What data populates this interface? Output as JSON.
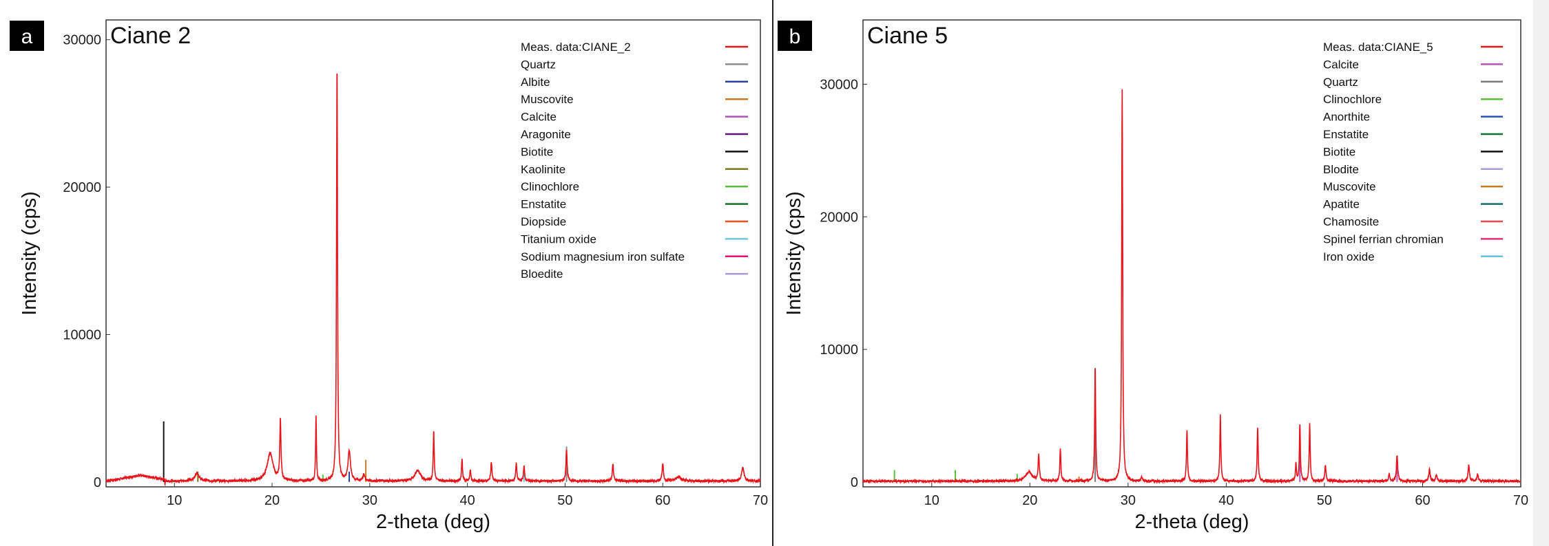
{
  "chart_data": [
    {
      "type": "line",
      "panel_label": "a",
      "title": "Ciane 2",
      "xlabel": "2-theta (deg)",
      "ylabel": "Intensity (cps)",
      "xlim": [
        3,
        70
      ],
      "ylim": [
        -335,
        31340
      ],
      "xticks": [
        10,
        20,
        30,
        40,
        50,
        60,
        70
      ],
      "yticks": [
        0,
        10000,
        20000,
        30000
      ],
      "legend_position": "top-right",
      "legend": [
        {
          "name": "Meas. data:CIANE_2",
          "color": "#e8131b"
        },
        {
          "name": "Quartz",
          "color": "#8c8c8c"
        },
        {
          "name": "Albite",
          "color": "#2a3f9e"
        },
        {
          "name": "Muscovite",
          "color": "#c87a1e"
        },
        {
          "name": "Calcite",
          "color": "#b255b8"
        },
        {
          "name": "Aragonite",
          "color": "#5b1a74"
        },
        {
          "name": "Biotite",
          "color": "#111111"
        },
        {
          "name": "Kaolinite",
          "color": "#7a7a18"
        },
        {
          "name": "Clinochlore",
          "color": "#5bbf3c"
        },
        {
          "name": "Enstatite",
          "color": "#11702a"
        },
        {
          "name": "Diopside",
          "color": "#f0501e"
        },
        {
          "name": "Titanium oxide",
          "color": "#6cc8e0"
        },
        {
          "name": "Sodium magnesium iron sulfate",
          "color": "#e6106e"
        },
        {
          "name": "Bloedite",
          "color": "#b09ad8"
        }
      ],
      "measured_peaks": [
        {
          "x": 12.3,
          "y": 550,
          "w": 0.25
        },
        {
          "x": 19.8,
          "y": 1900,
          "w": 0.35
        },
        {
          "x": 20.85,
          "y": 4100,
          "w": 0.07
        },
        {
          "x": 24.5,
          "y": 4400,
          "w": 0.05
        },
        {
          "x": 26.65,
          "y": 28400,
          "w": 0.06
        },
        {
          "x": 27.9,
          "y": 2000,
          "w": 0.15
        },
        {
          "x": 29.4,
          "y": 500,
          "w": 0.1
        },
        {
          "x": 34.9,
          "y": 700,
          "w": 0.35
        },
        {
          "x": 36.55,
          "y": 3400,
          "w": 0.06
        },
        {
          "x": 39.45,
          "y": 1500,
          "w": 0.06
        },
        {
          "x": 40.3,
          "y": 800,
          "w": 0.06
        },
        {
          "x": 42.45,
          "y": 1300,
          "w": 0.07
        },
        {
          "x": 45.0,
          "y": 1200,
          "w": 0.07
        },
        {
          "x": 45.8,
          "y": 1000,
          "w": 0.07
        },
        {
          "x": 50.15,
          "y": 2200,
          "w": 0.07
        },
        {
          "x": 54.9,
          "y": 1100,
          "w": 0.08
        },
        {
          "x": 60.0,
          "y": 1200,
          "w": 0.08
        },
        {
          "x": 61.6,
          "y": 300,
          "w": 0.3
        },
        {
          "x": 68.2,
          "y": 900,
          "w": 0.15
        }
      ],
      "reference_lines": [
        {
          "phase": "Biotite",
          "x": 8.9,
          "y": 4100
        },
        {
          "phase": "Muscovite",
          "x": 29.6,
          "y": 1500
        },
        {
          "phase": "Quartz",
          "x": 50.15,
          "y": 2400
        },
        {
          "phase": "Kaolinite",
          "x": 12.4,
          "y": 700
        },
        {
          "phase": "Clinochlore",
          "x": 25.2,
          "y": 500
        },
        {
          "phase": "Albite",
          "x": 27.9,
          "y": 700
        },
        {
          "phase": "Titanium oxide",
          "x": 45.8,
          "y": 1100
        }
      ]
    },
    {
      "type": "line",
      "panel_label": "b",
      "title": "Ciane 5",
      "xlabel": "2-theta (deg)",
      "ylabel": "Intensity (cps)",
      "xlim": [
        3,
        70
      ],
      "ylim": [
        -370,
        34850
      ],
      "xticks": [
        10,
        20,
        30,
        40,
        50,
        60,
        70
      ],
      "yticks": [
        0,
        10000,
        20000,
        30000
      ],
      "legend_position": "top-right",
      "legend": [
        {
          "name": "Meas. data:CIANE_5",
          "color": "#e8131b"
        },
        {
          "name": "Calcite",
          "color": "#b255b8"
        },
        {
          "name": "Quartz",
          "color": "#7a7a7a"
        },
        {
          "name": "Clinochlore",
          "color": "#5bbf3c"
        },
        {
          "name": "Anorthite",
          "color": "#2a4fb8"
        },
        {
          "name": "Enstatite",
          "color": "#11702a"
        },
        {
          "name": "Biotite",
          "color": "#111111"
        },
        {
          "name": "Blodite",
          "color": "#b09ad8"
        },
        {
          "name": "Muscovite",
          "color": "#c87a1e"
        },
        {
          "name": "Apatite",
          "color": "#0f6e6a"
        },
        {
          "name": "Chamosite",
          "color": "#f04850"
        },
        {
          "name": "Spinel ferrian chromian",
          "color": "#e82a78"
        },
        {
          "name": "Iron oxide",
          "color": "#5cc4e0"
        }
      ],
      "measured_peaks": [
        {
          "x": 19.9,
          "y": 700,
          "w": 0.4
        },
        {
          "x": 20.9,
          "y": 2000,
          "w": 0.07
        },
        {
          "x": 23.1,
          "y": 2500,
          "w": 0.06
        },
        {
          "x": 26.65,
          "y": 8700,
          "w": 0.06
        },
        {
          "x": 29.4,
          "y": 29600,
          "w": 0.06
        },
        {
          "x": 31.4,
          "y": 300,
          "w": 0.08
        },
        {
          "x": 36.0,
          "y": 3900,
          "w": 0.06
        },
        {
          "x": 39.4,
          "y": 5000,
          "w": 0.06
        },
        {
          "x": 43.2,
          "y": 4100,
          "w": 0.06
        },
        {
          "x": 47.1,
          "y": 1300,
          "w": 0.06
        },
        {
          "x": 47.5,
          "y": 4200,
          "w": 0.06
        },
        {
          "x": 48.5,
          "y": 4400,
          "w": 0.06
        },
        {
          "x": 50.1,
          "y": 1200,
          "w": 0.07
        },
        {
          "x": 56.6,
          "y": 500,
          "w": 0.08
        },
        {
          "x": 57.4,
          "y": 1900,
          "w": 0.08
        },
        {
          "x": 60.7,
          "y": 900,
          "w": 0.08
        },
        {
          "x": 61.4,
          "y": 500,
          "w": 0.08
        },
        {
          "x": 64.7,
          "y": 1200,
          "w": 0.08
        },
        {
          "x": 65.6,
          "y": 500,
          "w": 0.08
        }
      ],
      "reference_lines": [
        {
          "phase": "Clinochlore",
          "x": 6.2,
          "y": 900
        },
        {
          "phase": "Clinochlore",
          "x": 12.4,
          "y": 900
        },
        {
          "phase": "Clinochlore",
          "x": 18.7,
          "y": 600
        },
        {
          "phase": "Quartz",
          "x": 26.65,
          "y": 8600
        },
        {
          "phase": "Calcite",
          "x": 47.5,
          "y": 4300
        },
        {
          "phase": "Calcite",
          "x": 57.4,
          "y": 2000
        },
        {
          "phase": "Muscovite",
          "x": 25.0,
          "y": 400
        }
      ]
    }
  ]
}
